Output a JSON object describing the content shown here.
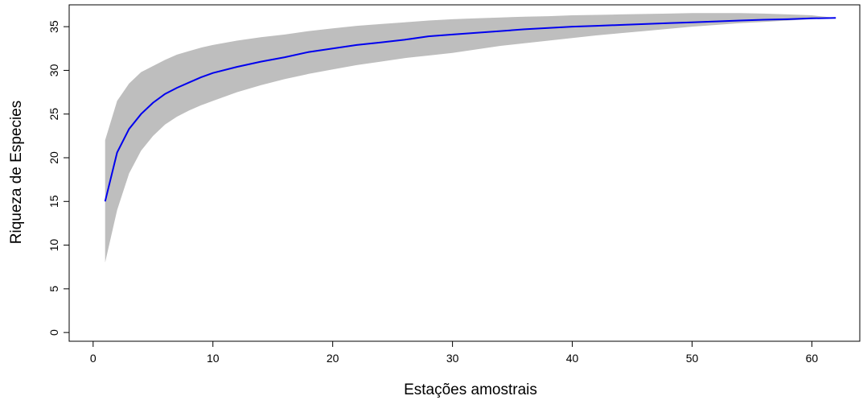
{
  "chart_data": {
    "type": "line",
    "title": "",
    "xlabel": "Estações amostrais",
    "ylabel": "Riqueza de Especies",
    "xlim": [
      -2,
      64
    ],
    "ylim": [
      -1,
      37.5
    ],
    "x_ticks": [
      0,
      10,
      20,
      30,
      40,
      50,
      60
    ],
    "y_ticks": [
      0,
      5,
      10,
      15,
      20,
      25,
      30,
      35
    ],
    "grid": false,
    "legend": "none",
    "colors": {
      "line": "#0000ee",
      "band": "#bebebe",
      "axis": "#000000"
    },
    "series": [
      {
        "x": [
          1,
          2,
          3,
          4,
          5,
          6,
          7,
          8,
          9,
          10,
          12,
          14,
          16,
          18,
          20,
          22,
          24,
          26,
          28,
          30,
          32,
          34,
          36,
          38,
          40,
          42,
          44,
          46,
          48,
          50,
          52,
          54,
          56,
          58,
          60,
          62
        ],
        "values": [
          15,
          20.6,
          23.3,
          25,
          26.3,
          27.3,
          28,
          28.6,
          29.2,
          29.7,
          30.4,
          31,
          31.5,
          32.1,
          32.5,
          32.9,
          33.2,
          33.5,
          33.9,
          34.1,
          34.3,
          34.5,
          34.7,
          34.85,
          35,
          35.1,
          35.2,
          35.3,
          35.4,
          35.5,
          35.6,
          35.7,
          35.8,
          35.85,
          35.95,
          36
        ],
        "upper": [
          22,
          26.5,
          28.5,
          29.8,
          30.5,
          31.2,
          31.8,
          32.2,
          32.6,
          32.9,
          33.4,
          33.8,
          34.1,
          34.5,
          34.8,
          35.1,
          35.3,
          35.5,
          35.7,
          35.85,
          35.95,
          36.05,
          36.15,
          36.2,
          36.3,
          36.35,
          36.4,
          36.45,
          36.5,
          36.55,
          36.55,
          36.55,
          36.5,
          36.4,
          36.3,
          36
        ],
        "lower": [
          8,
          14,
          18.2,
          20.8,
          22.5,
          23.8,
          24.7,
          25.4,
          26,
          26.5,
          27.5,
          28.3,
          29,
          29.6,
          30.1,
          30.6,
          31,
          31.4,
          31.7,
          32,
          32.4,
          32.8,
          33.1,
          33.4,
          33.7,
          34,
          34.25,
          34.5,
          34.75,
          35,
          35.2,
          35.4,
          35.55,
          35.7,
          35.85,
          36
        ]
      }
    ]
  }
}
